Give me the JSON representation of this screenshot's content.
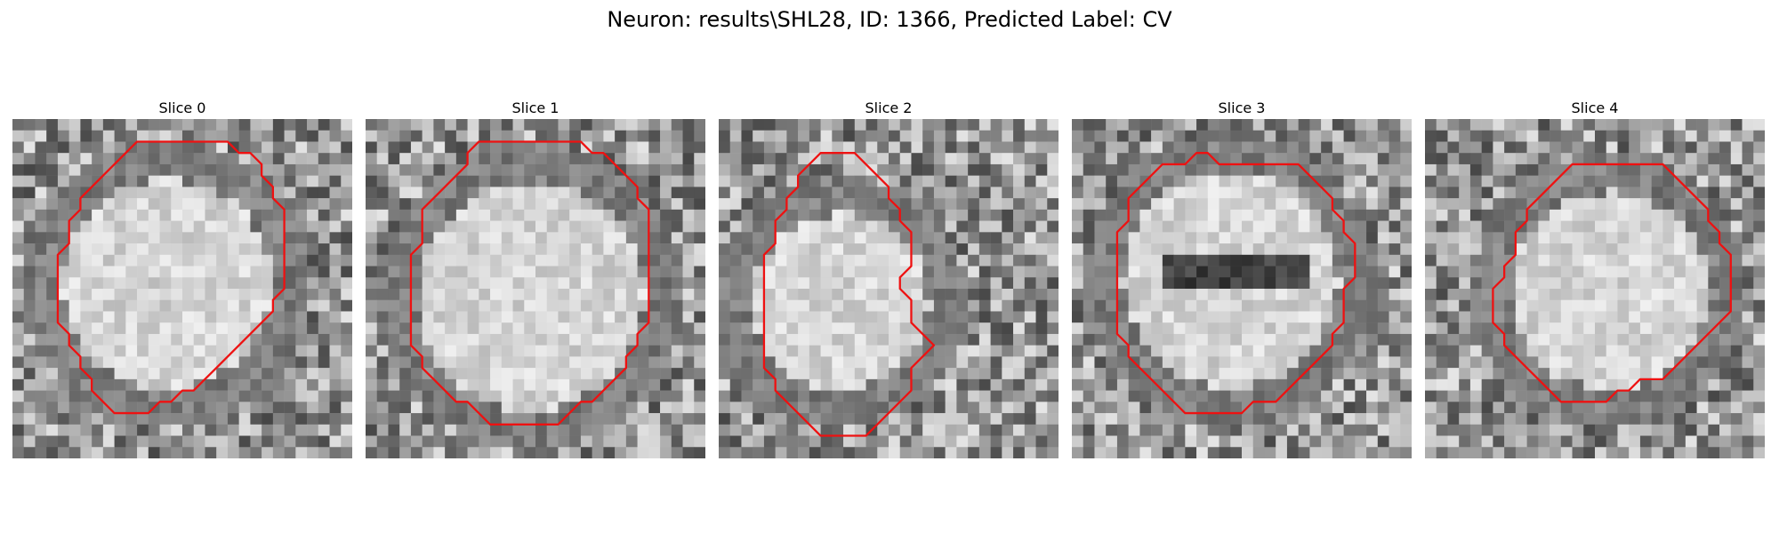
{
  "figure": {
    "title": "Neuron: results\\SHL28, ID: 1366, Predicted Label: CV",
    "contour_color": "#ee1111"
  },
  "panels": [
    {
      "title": "Slice 0",
      "seed": 11,
      "contour": [
        [
          11,
          2
        ],
        [
          19,
          2
        ],
        [
          20,
          3
        ],
        [
          21,
          3
        ],
        [
          22,
          4
        ],
        [
          22,
          5
        ],
        [
          23,
          6
        ],
        [
          23,
          7
        ],
        [
          24,
          8
        ],
        [
          24,
          9
        ],
        [
          24,
          10
        ],
        [
          24,
          11
        ],
        [
          24,
          12
        ],
        [
          24,
          13
        ],
        [
          24,
          14
        ],
        [
          24,
          15
        ],
        [
          23,
          16
        ],
        [
          23,
          17
        ],
        [
          22,
          18
        ],
        [
          21,
          19
        ],
        [
          20,
          20
        ],
        [
          19,
          21
        ],
        [
          18,
          22
        ],
        [
          17,
          23
        ],
        [
          16,
          24
        ],
        [
          15,
          24
        ],
        [
          14,
          25
        ],
        [
          13,
          25
        ],
        [
          12,
          26
        ],
        [
          11,
          26
        ],
        [
          10,
          26
        ],
        [
          9,
          26
        ],
        [
          8,
          25
        ],
        [
          7,
          24
        ],
        [
          7,
          23
        ],
        [
          6,
          22
        ],
        [
          6,
          21
        ],
        [
          5,
          20
        ],
        [
          5,
          19
        ],
        [
          4,
          18
        ],
        [
          4,
          17
        ],
        [
          4,
          16
        ],
        [
          4,
          15
        ],
        [
          4,
          14
        ],
        [
          4,
          13
        ],
        [
          4,
          12
        ],
        [
          5,
          11
        ],
        [
          5,
          10
        ],
        [
          5,
          9
        ],
        [
          6,
          8
        ],
        [
          6,
          7
        ],
        [
          7,
          6
        ],
        [
          8,
          5
        ],
        [
          9,
          4
        ],
        [
          10,
          3
        ]
      ]
    },
    {
      "title": "Slice 1",
      "seed": 23,
      "contour": [
        [
          10,
          2
        ],
        [
          19,
          2
        ],
        [
          20,
          3
        ],
        [
          21,
          3
        ],
        [
          22,
          4
        ],
        [
          23,
          5
        ],
        [
          24,
          6
        ],
        [
          24,
          7
        ],
        [
          25,
          8
        ],
        [
          25,
          9
        ],
        [
          25,
          10
        ],
        [
          25,
          11
        ],
        [
          25,
          12
        ],
        [
          25,
          13
        ],
        [
          25,
          14
        ],
        [
          25,
          15
        ],
        [
          25,
          16
        ],
        [
          25,
          17
        ],
        [
          25,
          18
        ],
        [
          24,
          19
        ],
        [
          24,
          20
        ],
        [
          23,
          21
        ],
        [
          23,
          22
        ],
        [
          22,
          23
        ],
        [
          21,
          24
        ],
        [
          20,
          25
        ],
        [
          19,
          25
        ],
        [
          18,
          26
        ],
        [
          17,
          27
        ],
        [
          16,
          27
        ],
        [
          15,
          27
        ],
        [
          14,
          27
        ],
        [
          13,
          27
        ],
        [
          12,
          27
        ],
        [
          11,
          27
        ],
        [
          10,
          26
        ],
        [
          9,
          25
        ],
        [
          8,
          25
        ],
        [
          7,
          24
        ],
        [
          6,
          23
        ],
        [
          5,
          22
        ],
        [
          5,
          21
        ],
        [
          4,
          20
        ],
        [
          4,
          19
        ],
        [
          4,
          18
        ],
        [
          4,
          17
        ],
        [
          4,
          16
        ],
        [
          4,
          15
        ],
        [
          4,
          14
        ],
        [
          4,
          13
        ],
        [
          4,
          12
        ],
        [
          5,
          11
        ],
        [
          5,
          10
        ],
        [
          5,
          9
        ],
        [
          5,
          8
        ],
        [
          6,
          7
        ],
        [
          7,
          6
        ],
        [
          8,
          5
        ],
        [
          9,
          4
        ],
        [
          9,
          3
        ]
      ]
    },
    {
      "title": "Slice 2",
      "seed": 37,
      "contour": [
        [
          9,
          3
        ],
        [
          12,
          3
        ],
        [
          13,
          4
        ],
        [
          14,
          5
        ],
        [
          15,
          6
        ],
        [
          15,
          7
        ],
        [
          16,
          8
        ],
        [
          16,
          9
        ],
        [
          17,
          10
        ],
        [
          17,
          11
        ],
        [
          17,
          12
        ],
        [
          17,
          13
        ],
        [
          16,
          14
        ],
        [
          16,
          15
        ],
        [
          17,
          16
        ],
        [
          17,
          17
        ],
        [
          17,
          18
        ],
        [
          18,
          19
        ],
        [
          19,
          20
        ],
        [
          18,
          21
        ],
        [
          17,
          22
        ],
        [
          17,
          23
        ],
        [
          17,
          24
        ],
        [
          16,
          25
        ],
        [
          15,
          26
        ],
        [
          14,
          27
        ],
        [
          13,
          28
        ],
        [
          12,
          28
        ],
        [
          11,
          28
        ],
        [
          10,
          28
        ],
        [
          9,
          28
        ],
        [
          8,
          27
        ],
        [
          7,
          26
        ],
        [
          6,
          25
        ],
        [
          5,
          24
        ],
        [
          5,
          23
        ],
        [
          4,
          22
        ],
        [
          4,
          21
        ],
        [
          4,
          20
        ],
        [
          4,
          19
        ],
        [
          4,
          18
        ],
        [
          4,
          17
        ],
        [
          4,
          16
        ],
        [
          4,
          15
        ],
        [
          4,
          14
        ],
        [
          4,
          13
        ],
        [
          4,
          12
        ],
        [
          5,
          11
        ],
        [
          5,
          10
        ],
        [
          5,
          9
        ],
        [
          6,
          8
        ],
        [
          6,
          7
        ],
        [
          7,
          6
        ],
        [
          7,
          5
        ],
        [
          8,
          4
        ]
      ]
    },
    {
      "title": "Slice 3",
      "seed": 53,
      "contour": [
        [
          8,
          4
        ],
        [
          10,
          4
        ],
        [
          11,
          3
        ],
        [
          12,
          3
        ],
        [
          13,
          4
        ],
        [
          14,
          4
        ],
        [
          15,
          4
        ],
        [
          16,
          4
        ],
        [
          17,
          4
        ],
        [
          18,
          4
        ],
        [
          19,
          4
        ],
        [
          20,
          4
        ],
        [
          21,
          5
        ],
        [
          22,
          6
        ],
        [
          23,
          7
        ],
        [
          23,
          8
        ],
        [
          24,
          9
        ],
        [
          24,
          10
        ],
        [
          25,
          11
        ],
        [
          25,
          12
        ],
        [
          25,
          13
        ],
        [
          25,
          14
        ],
        [
          24,
          15
        ],
        [
          24,
          16
        ],
        [
          24,
          17
        ],
        [
          24,
          18
        ],
        [
          23,
          19
        ],
        [
          23,
          20
        ],
        [
          22,
          21
        ],
        [
          21,
          22
        ],
        [
          20,
          23
        ],
        [
          19,
          24
        ],
        [
          18,
          25
        ],
        [
          17,
          25
        ],
        [
          16,
          25
        ],
        [
          15,
          26
        ],
        [
          14,
          26
        ],
        [
          13,
          26
        ],
        [
          12,
          26
        ],
        [
          11,
          26
        ],
        [
          10,
          26
        ],
        [
          9,
          25
        ],
        [
          8,
          24
        ],
        [
          7,
          23
        ],
        [
          6,
          22
        ],
        [
          5,
          21
        ],
        [
          5,
          20
        ],
        [
          4,
          19
        ],
        [
          4,
          18
        ],
        [
          4,
          17
        ],
        [
          4,
          16
        ],
        [
          4,
          15
        ],
        [
          4,
          14
        ],
        [
          4,
          13
        ],
        [
          4,
          12
        ],
        [
          4,
          11
        ],
        [
          4,
          10
        ],
        [
          5,
          9
        ],
        [
          5,
          8
        ],
        [
          5,
          7
        ],
        [
          6,
          6
        ],
        [
          7,
          5
        ]
      ]
    },
    {
      "title": "Slice 4",
      "seed": 71,
      "contour": [
        [
          15,
          4
        ],
        [
          21,
          4
        ],
        [
          22,
          5
        ],
        [
          23,
          6
        ],
        [
          24,
          7
        ],
        [
          25,
          8
        ],
        [
          25,
          9
        ],
        [
          26,
          10
        ],
        [
          26,
          11
        ],
        [
          27,
          12
        ],
        [
          27,
          13
        ],
        [
          27,
          14
        ],
        [
          27,
          15
        ],
        [
          27,
          16
        ],
        [
          27,
          17
        ],
        [
          26,
          18
        ],
        [
          25,
          19
        ],
        [
          24,
          20
        ],
        [
          23,
          21
        ],
        [
          22,
          22
        ],
        [
          21,
          23
        ],
        [
          20,
          23
        ],
        [
          19,
          23
        ],
        [
          18,
          24
        ],
        [
          17,
          24
        ],
        [
          16,
          25
        ],
        [
          15,
          25
        ],
        [
          14,
          25
        ],
        [
          13,
          25
        ],
        [
          12,
          25
        ],
        [
          11,
          24
        ],
        [
          10,
          23
        ],
        [
          9,
          22
        ],
        [
          8,
          21
        ],
        [
          7,
          20
        ],
        [
          7,
          19
        ],
        [
          6,
          18
        ],
        [
          6,
          17
        ],
        [
          6,
          16
        ],
        [
          6,
          15
        ],
        [
          7,
          14
        ],
        [
          7,
          13
        ],
        [
          8,
          12
        ],
        [
          8,
          11
        ],
        [
          8,
          10
        ],
        [
          9,
          9
        ],
        [
          9,
          8
        ],
        [
          10,
          7
        ],
        [
          11,
          6
        ],
        [
          12,
          5
        ],
        [
          13,
          4
        ],
        [
          14,
          4
        ]
      ]
    }
  ]
}
